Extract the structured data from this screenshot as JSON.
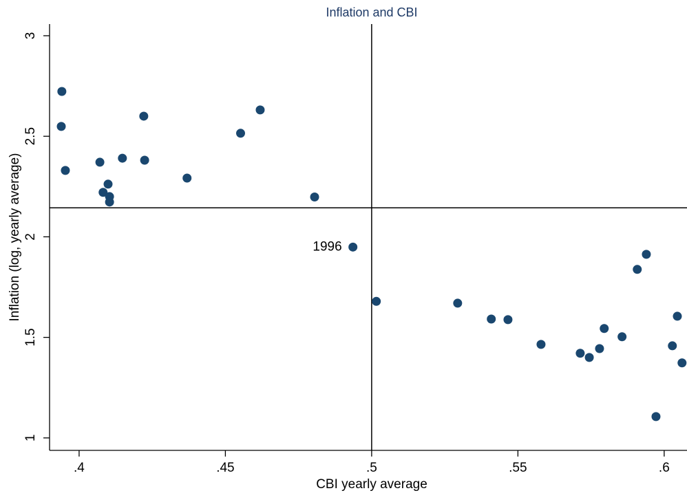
{
  "chart_data": {
    "type": "scatter",
    "title": "Inflation and CBI",
    "x_label": "CBI yearly average",
    "y_label": "Inflation (log, yearly average)",
    "color": "#1a476f",
    "xlim": [
      0.3899,
      0.6078
    ],
    "ylim": [
      0.938,
      3.058
    ],
    "xticks": [
      {
        "value": 0.4,
        "label": ".4"
      },
      {
        "value": 0.45,
        "label": ".45"
      },
      {
        "value": 0.5,
        "label": ".5"
      },
      {
        "value": 0.55,
        "label": ".55"
      },
      {
        "value": 0.6,
        "label": ".6"
      }
    ],
    "yticks": [
      1,
      1.5,
      2,
      2.5,
      3
    ],
    "vline": 0.5,
    "hline": 2.144,
    "x": [
      0.3941,
      0.3939,
      0.3953,
      0.4071,
      0.4148,
      0.4082,
      0.4099,
      0.4104,
      0.4104,
      0.4221,
      0.4224,
      0.4369,
      0.4552,
      0.4619,
      0.4805,
      0.4936,
      0.5016,
      0.5294,
      0.5409,
      0.5466,
      0.5579,
      0.5713,
      0.5744,
      0.5779,
      0.5795,
      0.5856,
      0.5908,
      0.5939,
      0.5972,
      0.6028,
      0.6045,
      0.6061
    ],
    "values": [
      2.723,
      2.549,
      2.33,
      2.371,
      2.391,
      2.221,
      2.262,
      2.2,
      2.173,
      2.6,
      2.381,
      2.292,
      2.515,
      2.631,
      2.198,
      1.949,
      1.679,
      1.67,
      1.591,
      1.588,
      1.465,
      1.421,
      1.4,
      1.444,
      1.544,
      1.503,
      1.838,
      1.913,
      1.106,
      1.458,
      1.605,
      1.373
    ],
    "point_labels": [
      null,
      null,
      null,
      null,
      null,
      null,
      null,
      null,
      null,
      null,
      null,
      null,
      null,
      null,
      null,
      "1996",
      null,
      null,
      null,
      null,
      null,
      null,
      null,
      null,
      null,
      null,
      null,
      null,
      null,
      null,
      null,
      null
    ]
  }
}
